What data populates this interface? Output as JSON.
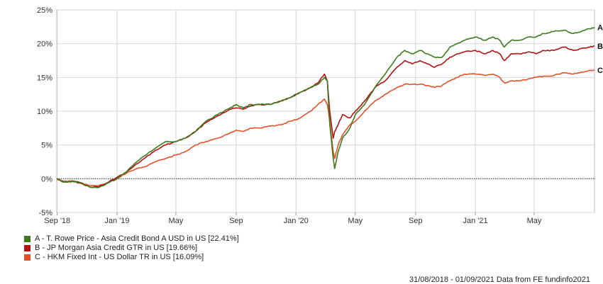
{
  "chart_data": {
    "type": "line",
    "y_ticks": [
      "25%",
      "20%",
      "15%",
      "10%",
      "5%",
      "0%",
      "-5%"
    ],
    "y_tick_values": [
      25,
      20,
      15,
      10,
      5,
      0,
      -5
    ],
    "ylim": [
      -5,
      25
    ],
    "x_tick_labels": [
      "Sep '18",
      "Jan '19",
      "May",
      "Sep",
      "Jan '20",
      "May",
      "Sep",
      "Jan '21",
      "May"
    ],
    "x_tick_dates": [
      "2018-09-01",
      "2019-01-01",
      "2019-05-01",
      "2019-09-01",
      "2020-01-01",
      "2020-05-01",
      "2020-09-01",
      "2021-01-01",
      "2021-05-01"
    ],
    "xlim": [
      "2018-08-31",
      "2021-09-01"
    ],
    "zero_line": true,
    "grid": true,
    "series": [
      {
        "id": "A",
        "name": "A - T. Rowe Price - Asia Credit Bond A USD in US [22.41%]",
        "color": "#3d7a1e",
        "points": [
          [
            "2018-08-31",
            0.0
          ],
          [
            "2018-09-15",
            -0.5
          ],
          [
            "2018-10-01",
            -0.4
          ],
          [
            "2018-10-20",
            -0.6
          ],
          [
            "2018-11-05",
            -1.2
          ],
          [
            "2018-11-25",
            -1.3
          ],
          [
            "2018-12-15",
            -0.6
          ],
          [
            "2019-01-01",
            0.0
          ],
          [
            "2019-01-20",
            1.0
          ],
          [
            "2019-02-10",
            2.5
          ],
          [
            "2019-03-01",
            3.5
          ],
          [
            "2019-03-20",
            4.5
          ],
          [
            "2019-04-10",
            5.5
          ],
          [
            "2019-05-01",
            5.5
          ],
          [
            "2019-05-20",
            6.0
          ],
          [
            "2019-06-10",
            7.0
          ],
          [
            "2019-07-01",
            8.5
          ],
          [
            "2019-07-25",
            9.5
          ],
          [
            "2019-08-20",
            10.5
          ],
          [
            "2019-09-01",
            11.0
          ],
          [
            "2019-09-15",
            10.5
          ],
          [
            "2019-10-01",
            11.0
          ],
          [
            "2019-10-20",
            11.0
          ],
          [
            "2019-11-10",
            11.0
          ],
          [
            "2019-12-01",
            11.5
          ],
          [
            "2019-12-20",
            12.0
          ],
          [
            "2020-01-10",
            12.8
          ],
          [
            "2020-01-31",
            13.5
          ],
          [
            "2020-02-15",
            14.0
          ],
          [
            "2020-02-28",
            15.0
          ],
          [
            "2020-03-05",
            14.5
          ],
          [
            "2020-03-10",
            8.0
          ],
          [
            "2020-03-17",
            3.0
          ],
          [
            "2020-03-20",
            1.5
          ],
          [
            "2020-03-27",
            4.0
          ],
          [
            "2020-04-05",
            6.0
          ],
          [
            "2020-04-20",
            7.5
          ],
          [
            "2020-05-01",
            9.5
          ],
          [
            "2020-05-20",
            11.0
          ],
          [
            "2020-06-10",
            13.5
          ],
          [
            "2020-07-01",
            15.5
          ],
          [
            "2020-07-25",
            18.0
          ],
          [
            "2020-08-10",
            19.0
          ],
          [
            "2020-08-25",
            18.5
          ],
          [
            "2020-09-10",
            19.0
          ],
          [
            "2020-09-25",
            18.5
          ],
          [
            "2020-10-10",
            18.0
          ],
          [
            "2020-10-25",
            18.0
          ],
          [
            "2020-11-10",
            19.5
          ],
          [
            "2020-11-25",
            20.0
          ],
          [
            "2020-12-10",
            20.5
          ],
          [
            "2021-01-01",
            21.0
          ],
          [
            "2021-01-20",
            20.5
          ],
          [
            "2021-02-05",
            21.0
          ],
          [
            "2021-02-20",
            20.5
          ],
          [
            "2021-03-01",
            19.5
          ],
          [
            "2021-03-15",
            20.5
          ],
          [
            "2021-04-01",
            20.5
          ],
          [
            "2021-04-20",
            21.0
          ],
          [
            "2021-05-05",
            21.0
          ],
          [
            "2021-05-20",
            21.5
          ],
          [
            "2021-06-10",
            21.8
          ],
          [
            "2021-07-01",
            22.0
          ],
          [
            "2021-07-20",
            21.5
          ],
          [
            "2021-08-05",
            21.8
          ],
          [
            "2021-08-20",
            22.2
          ],
          [
            "2021-09-01",
            22.41
          ]
        ]
      },
      {
        "id": "B",
        "name": "B - JP Morgan Asia Credit GTR in US [19.66%]",
        "color": "#b01313",
        "points": [
          [
            "2018-08-31",
            0.0
          ],
          [
            "2018-09-15",
            -0.5
          ],
          [
            "2018-10-01",
            -0.4
          ],
          [
            "2018-10-20",
            -0.7
          ],
          [
            "2018-11-05",
            -1.2
          ],
          [
            "2018-11-25",
            -1.2
          ],
          [
            "2018-12-15",
            -0.5
          ],
          [
            "2019-01-01",
            0.2
          ],
          [
            "2019-01-20",
            1.0
          ],
          [
            "2019-02-10",
            2.2
          ],
          [
            "2019-03-01",
            3.2
          ],
          [
            "2019-03-20",
            4.2
          ],
          [
            "2019-04-10",
            5.0
          ],
          [
            "2019-05-01",
            5.5
          ],
          [
            "2019-05-20",
            6.0
          ],
          [
            "2019-06-10",
            7.0
          ],
          [
            "2019-07-01",
            8.3
          ],
          [
            "2019-07-25",
            9.3
          ],
          [
            "2019-08-20",
            10.3
          ],
          [
            "2019-09-01",
            10.5
          ],
          [
            "2019-09-15",
            10.3
          ],
          [
            "2019-10-01",
            10.8
          ],
          [
            "2019-10-20",
            11.0
          ],
          [
            "2019-11-10",
            11.0
          ],
          [
            "2019-12-01",
            11.5
          ],
          [
            "2019-12-20",
            12.0
          ],
          [
            "2020-01-10",
            12.8
          ],
          [
            "2020-01-31",
            13.5
          ],
          [
            "2020-02-15",
            14.2
          ],
          [
            "2020-02-28",
            15.5
          ],
          [
            "2020-03-05",
            14.5
          ],
          [
            "2020-03-10",
            10.0
          ],
          [
            "2020-03-17",
            6.0
          ],
          [
            "2020-03-20",
            7.0
          ],
          [
            "2020-03-27",
            8.0
          ],
          [
            "2020-04-05",
            9.5
          ],
          [
            "2020-04-20",
            9.0
          ],
          [
            "2020-05-01",
            10.0
          ],
          [
            "2020-05-20",
            11.5
          ],
          [
            "2020-06-10",
            13.5
          ],
          [
            "2020-07-01",
            14.5
          ],
          [
            "2020-07-25",
            16.5
          ],
          [
            "2020-08-10",
            17.5
          ],
          [
            "2020-08-25",
            17.0
          ],
          [
            "2020-09-10",
            17.5
          ],
          [
            "2020-09-25",
            17.0
          ],
          [
            "2020-10-10",
            16.5
          ],
          [
            "2020-10-25",
            17.0
          ],
          [
            "2020-11-10",
            18.0
          ],
          [
            "2020-11-25",
            18.5
          ],
          [
            "2020-12-10",
            18.8
          ],
          [
            "2021-01-01",
            19.0
          ],
          [
            "2021-01-20",
            18.5
          ],
          [
            "2021-02-05",
            19.0
          ],
          [
            "2021-02-20",
            18.5
          ],
          [
            "2021-03-01",
            17.5
          ],
          [
            "2021-03-15",
            18.5
          ],
          [
            "2021-04-01",
            18.5
          ],
          [
            "2021-04-20",
            18.8
          ],
          [
            "2021-05-05",
            18.5
          ],
          [
            "2021-05-20",
            19.0
          ],
          [
            "2021-06-10",
            19.0
          ],
          [
            "2021-07-01",
            19.5
          ],
          [
            "2021-07-20",
            19.0
          ],
          [
            "2021-08-05",
            19.3
          ],
          [
            "2021-08-20",
            19.5
          ],
          [
            "2021-09-01",
            19.66
          ]
        ]
      },
      {
        "id": "C",
        "name": "C - HKM Fixed Int - US Dollar TR in US [16.09%]",
        "color": "#e0522b",
        "points": [
          [
            "2018-08-31",
            0.0
          ],
          [
            "2018-09-15",
            -0.4
          ],
          [
            "2018-10-01",
            -0.3
          ],
          [
            "2018-10-20",
            -0.6
          ],
          [
            "2018-11-05",
            -1.0
          ],
          [
            "2018-11-25",
            -1.0
          ],
          [
            "2018-12-15",
            -0.5
          ],
          [
            "2019-01-01",
            0.0
          ],
          [
            "2019-01-20",
            0.8
          ],
          [
            "2019-02-10",
            1.5
          ],
          [
            "2019-03-01",
            1.8
          ],
          [
            "2019-03-20",
            2.5
          ],
          [
            "2019-04-10",
            3.0
          ],
          [
            "2019-05-01",
            3.5
          ],
          [
            "2019-05-20",
            4.0
          ],
          [
            "2019-06-10",
            5.0
          ],
          [
            "2019-07-01",
            5.5
          ],
          [
            "2019-07-25",
            6.0
          ],
          [
            "2019-08-20",
            6.8
          ],
          [
            "2019-09-01",
            7.2
          ],
          [
            "2019-09-15",
            7.0
          ],
          [
            "2019-10-01",
            7.5
          ],
          [
            "2019-10-20",
            7.5
          ],
          [
            "2019-11-10",
            7.8
          ],
          [
            "2019-12-01",
            8.0
          ],
          [
            "2019-12-20",
            8.5
          ],
          [
            "2020-01-10",
            9.0
          ],
          [
            "2020-01-31",
            10.0
          ],
          [
            "2020-02-15",
            11.0
          ],
          [
            "2020-02-28",
            11.8
          ],
          [
            "2020-03-05",
            11.0
          ],
          [
            "2020-03-10",
            8.5
          ],
          [
            "2020-03-17",
            4.0
          ],
          [
            "2020-03-20",
            3.0
          ],
          [
            "2020-03-27",
            5.0
          ],
          [
            "2020-04-05",
            6.5
          ],
          [
            "2020-04-20",
            8.0
          ],
          [
            "2020-05-01",
            8.5
          ],
          [
            "2020-05-20",
            10.0
          ],
          [
            "2020-06-10",
            11.5
          ],
          [
            "2020-07-01",
            12.5
          ],
          [
            "2020-07-25",
            13.5
          ],
          [
            "2020-08-10",
            14.0
          ],
          [
            "2020-08-25",
            14.0
          ],
          [
            "2020-09-10",
            14.0
          ],
          [
            "2020-09-25",
            13.8
          ],
          [
            "2020-10-10",
            13.5
          ],
          [
            "2020-10-25",
            13.8
          ],
          [
            "2020-11-10",
            14.5
          ],
          [
            "2020-11-25",
            15.0
          ],
          [
            "2020-12-10",
            15.5
          ],
          [
            "2021-01-01",
            15.5
          ],
          [
            "2021-01-20",
            15.3
          ],
          [
            "2021-02-05",
            15.5
          ],
          [
            "2021-02-20",
            15.0
          ],
          [
            "2021-03-01",
            14.2
          ],
          [
            "2021-03-15",
            14.5
          ],
          [
            "2021-04-01",
            14.5
          ],
          [
            "2021-04-20",
            14.8
          ],
          [
            "2021-05-05",
            15.0
          ],
          [
            "2021-05-20",
            15.2
          ],
          [
            "2021-06-10",
            15.3
          ],
          [
            "2021-07-01",
            15.7
          ],
          [
            "2021-07-20",
            15.5
          ],
          [
            "2021-08-05",
            15.8
          ],
          [
            "2021-08-20",
            16.0
          ],
          [
            "2021-09-01",
            16.09
          ]
        ]
      }
    ]
  },
  "legend": [
    {
      "name": "A - T. Rowe Price - Asia Credit Bond A USD in US [22.41%]",
      "color": "#3d7a1e"
    },
    {
      "name": "B - JP Morgan Asia Credit GTR in US [19.66%]",
      "color": "#b01313"
    },
    {
      "name": "C - HKM Fixed Int - US Dollar TR in US [16.09%]",
      "color": "#e0522b"
    }
  ],
  "source_text": "31/08/2018 - 01/09/2021 Data from FE fundinfo2021"
}
